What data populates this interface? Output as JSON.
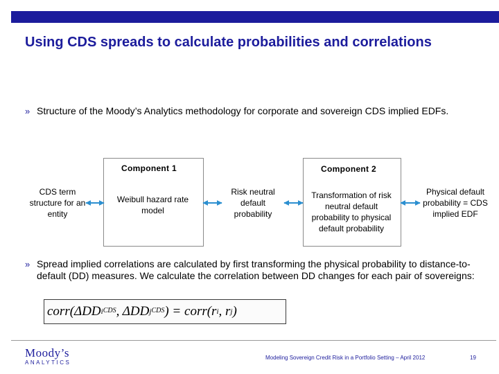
{
  "slide": {
    "title": "Using CDS spreads to calculate probabilities and correlations",
    "bullet_marker": "»",
    "bullet1": "Structure of the Moody’s Analytics methodology for corporate and sovereign CDS implied EDFs.",
    "bullet2": "Spread implied correlations are calculated by first transforming the physical probability to distance-to-default (DD) measures. We calculate the correlation between DD changes for each pair of sovereigns:"
  },
  "diagram": {
    "component1_label": "Component 1",
    "component2_label": "Component 2",
    "nodes": {
      "cds_term": "CDS term structure for an entity",
      "weibull": "Weibull hazard  rate model",
      "risk_neutral": "Risk neutral default probability",
      "transformation": "Transformation of risk neutral default probability to physical default probability",
      "physical": "Physical default probability = CDS implied EDF"
    },
    "arrow_color": "#2b8fd0"
  },
  "formula": {
    "lhs_open": "corr(ΔDD",
    "sub_i": "i",
    "sup_cds1": "CDS",
    "mid": ", ΔDD",
    "sub_j": "j",
    "sup_cds2": "CDS",
    "rhs": ") = corr(r",
    "sub_ri": "i",
    "comma": ", r",
    "sub_rj": "j",
    "close": ")"
  },
  "footer": {
    "logo_name": "Moody’s",
    "logo_sub": "ANALYTICS",
    "text": "Modeling Sovereign Credit Risk in a Portfolio Setting – April 2012",
    "page": "19"
  },
  "colors": {
    "brand": "#1c1c9c",
    "box_border": "#8a8a8a"
  }
}
